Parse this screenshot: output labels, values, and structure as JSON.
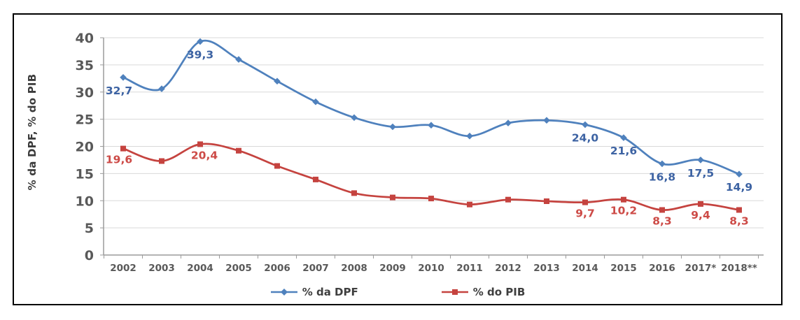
{
  "chart_data": {
    "type": "line",
    "title": "",
    "ylabel": "% da DPF, % do PIB",
    "xlabel": "",
    "categories": [
      "2002",
      "2003",
      "2004",
      "2005",
      "2006",
      "2007",
      "2008",
      "2009",
      "2010",
      "2011",
      "2012",
      "2013",
      "2014",
      "2015",
      "2016",
      "2017*",
      "2018**"
    ],
    "series": [
      {
        "name": "% da DPF",
        "marker": "diamond",
        "color": "#4F81BD",
        "label_color": "#3D63A3",
        "values": [
          32.7,
          30.6,
          39.3,
          36.0,
          32.0,
          28.2,
          25.3,
          23.6,
          23.9,
          21.9,
          24.3,
          24.8,
          24.0,
          21.6,
          16.8,
          17.5,
          14.9
        ],
        "point_labels": {
          "0": "32,7",
          "2": "39,3",
          "12": "24,0",
          "13": "21,6",
          "14": "16,8",
          "15": "17,5",
          "16": "14,9"
        }
      },
      {
        "name": "% do PIB",
        "marker": "square",
        "color": "#C5433F",
        "label_color": "#CD4B47",
        "values": [
          19.6,
          17.3,
          20.4,
          19.2,
          16.4,
          13.9,
          11.4,
          10.6,
          10.4,
          9.3,
          10.2,
          9.9,
          9.7,
          10.2,
          8.3,
          9.4,
          8.3
        ],
        "point_labels": {
          "0": "19,6",
          "2": "20,4",
          "12": "9,7",
          "13": "10,2",
          "14": "8,3",
          "15": "9,4",
          "16": "8,3"
        }
      }
    ],
    "yticks": [
      0,
      5,
      10,
      15,
      20,
      25,
      30,
      35,
      40
    ],
    "ylim": [
      0,
      40
    ],
    "grid": true,
    "legend_position": "bottom",
    "colors": {
      "background": "#FFFFFF",
      "border": "#000000",
      "grid": "#D9D9D9",
      "axis_line": "#9B9B9B",
      "axis_text": "#595959"
    }
  }
}
